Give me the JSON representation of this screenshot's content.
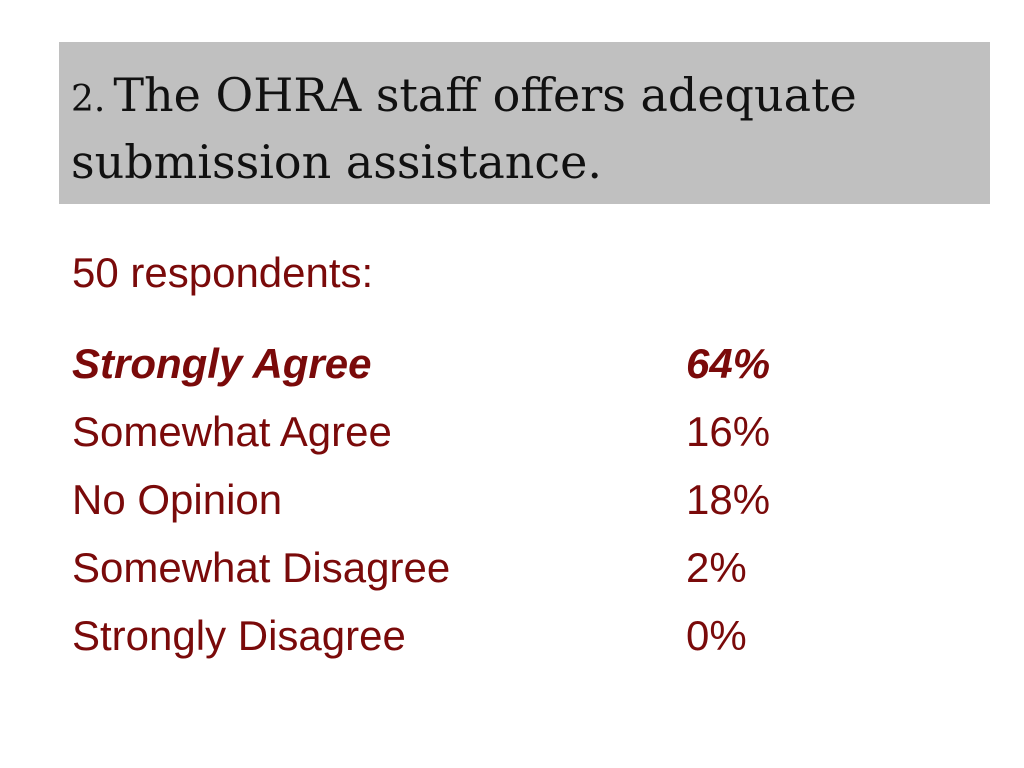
{
  "title": {
    "number": "2.",
    "text": "The OHRA staff offers adequate submission assistance."
  },
  "respondents_text": "50 respondents:",
  "colors": {
    "title_background": "#c0c0c0",
    "body_text": "#7a0a0a",
    "title_text": "#111111"
  },
  "responses": [
    {
      "label": "Strongly Agree",
      "value": "64%"
    },
    {
      "label": "Somewhat Agree",
      "value": "16%"
    },
    {
      "label": "No Opinion",
      "value": "18%"
    },
    {
      "label": "Somewhat Disagree",
      "value": "2%"
    },
    {
      "label": "Strongly Disagree",
      "value": "0%"
    }
  ]
}
